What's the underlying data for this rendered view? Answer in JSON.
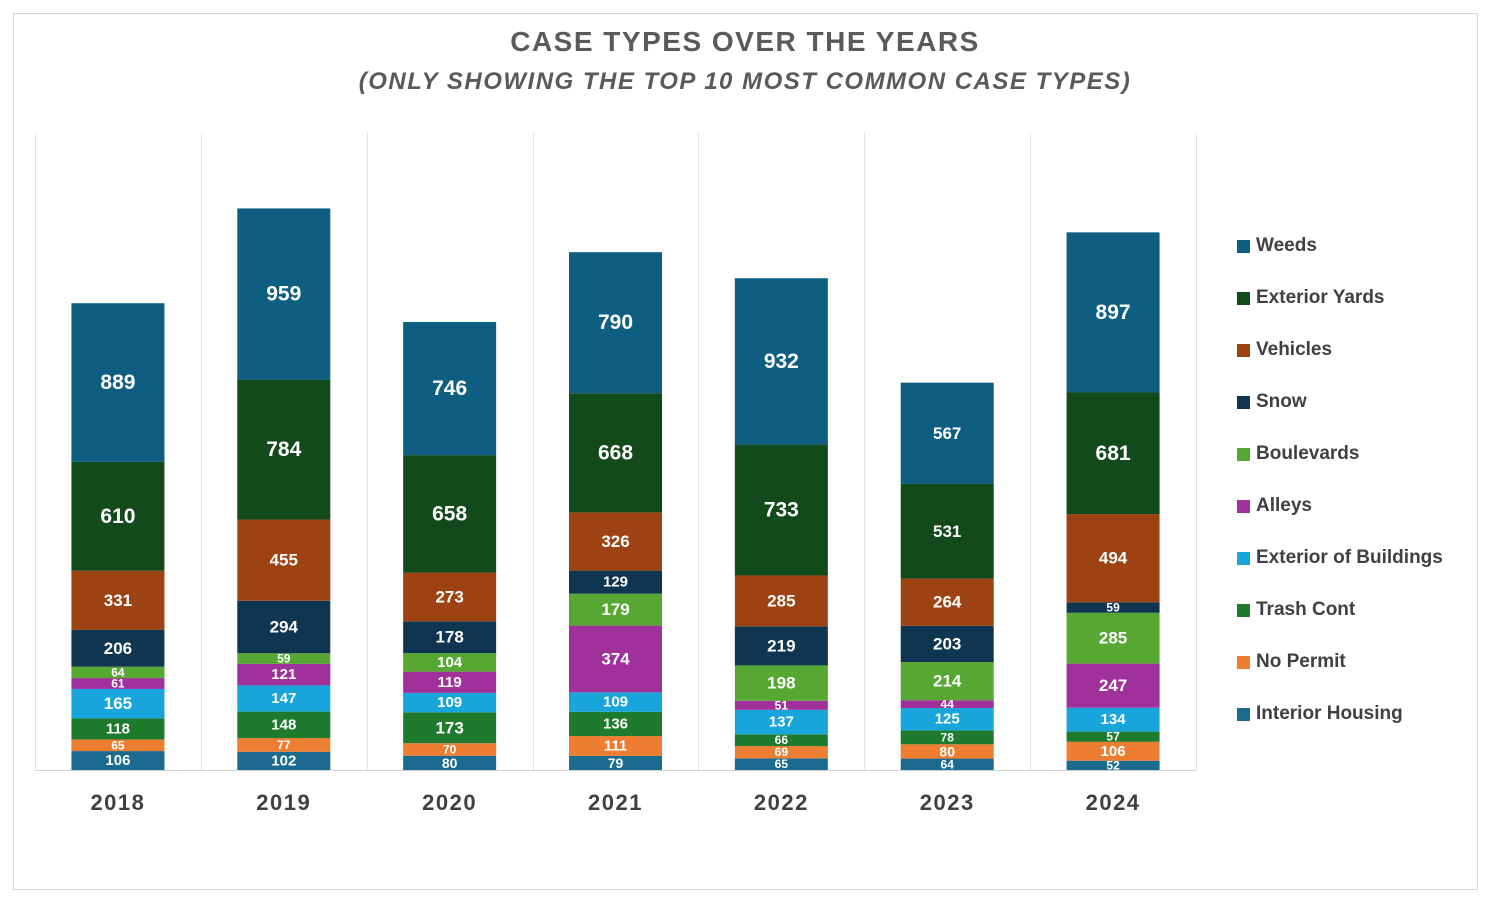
{
  "chart_data": {
    "type": "bar",
    "stacked": true,
    "title": "CASE TYPES OVER THE YEARS",
    "subtitle": "(ONLY SHOWING THE TOP 10 MOST COMMON CASE TYPES)",
    "categories": [
      "2018",
      "2019",
      "2020",
      "2021",
      "2022",
      "2023",
      "2024"
    ],
    "series": [
      {
        "name": "Interior Housing",
        "color": "#1a6b8f",
        "values": [
          106,
          102,
          80,
          79,
          65,
          64,
          52
        ]
      },
      {
        "name": "No Permit",
        "color": "#ed7d31",
        "values": [
          65,
          77,
          70,
          111,
          69,
          80,
          106
        ]
      },
      {
        "name": "Trash Cont",
        "color": "#1e7b2e",
        "values": [
          118,
          148,
          173,
          136,
          66,
          78,
          57
        ]
      },
      {
        "name": "Exterior of Buildings",
        "color": "#17a5dc",
        "values": [
          165,
          147,
          109,
          109,
          137,
          125,
          134
        ]
      },
      {
        "name": "Alleys",
        "color": "#a0309a",
        "values": [
          61,
          121,
          119,
          374,
          51,
          44,
          247
        ]
      },
      {
        "name": "Boulevards",
        "color": "#56a832",
        "values": [
          64,
          59,
          104,
          179,
          198,
          214,
          285
        ]
      },
      {
        "name": "Snow",
        "color": "#0f3550",
        "values": [
          206,
          294,
          178,
          129,
          219,
          203,
          59
        ]
      },
      {
        "name": "Vehicles",
        "color": "#9c4213",
        "values": [
          331,
          455,
          273,
          326,
          285,
          264,
          494
        ]
      },
      {
        "name": "Exterior Yards",
        "color": "#124a1c",
        "values": [
          610,
          784,
          658,
          668,
          733,
          531,
          681
        ]
      },
      {
        "name": "Weeds",
        "color": "#0e5e82",
        "values": [
          889,
          959,
          746,
          790,
          932,
          567,
          897
        ]
      }
    ],
    "legend_order": [
      "Weeds",
      "Exterior Yards",
      "Vehicles",
      "Snow",
      "Boulevards",
      "Alleys",
      "Exterior of Buildings",
      "Trash Cont",
      "No Permit",
      "Interior Housing"
    ],
    "ylim": [
      0,
      3500
    ],
    "grid": "vertical category separators",
    "legend_position": "right"
  }
}
